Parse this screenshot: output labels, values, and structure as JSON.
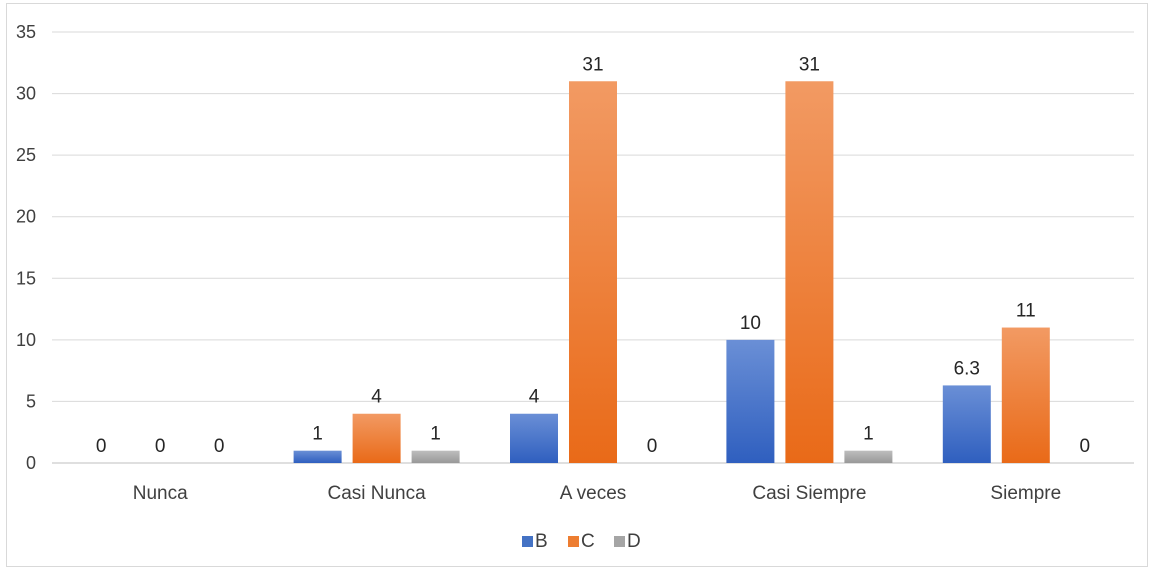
{
  "chart_data": {
    "type": "bar",
    "categories": [
      "Nunca",
      "Casi Nunca",
      "A veces",
      "Casi Siempre",
      "Siempre"
    ],
    "series": [
      {
        "name": "B",
        "values": [
          0,
          1,
          4,
          10,
          6.3
        ],
        "labels": [
          "0",
          "1",
          "4",
          "10",
          "6.3"
        ],
        "color": "#4472c4"
      },
      {
        "name": "C",
        "values": [
          0,
          4,
          31,
          31,
          11
        ],
        "labels": [
          "0",
          "4",
          "31",
          "31",
          "11"
        ],
        "color": "#ed7d31"
      },
      {
        "name": "D",
        "values": [
          0,
          1,
          0,
          1,
          0
        ],
        "labels": [
          "0",
          "1",
          "0",
          "1",
          "0"
        ],
        "color": "#a5a5a5"
      }
    ],
    "yticks": [
      "0",
      "5",
      "10",
      "15",
      "20",
      "25",
      "30",
      "35"
    ],
    "ylim": [
      0,
      35
    ],
    "grid": true,
    "legend_position": "bottom",
    "title": "",
    "xlabel": "",
    "ylabel": ""
  }
}
